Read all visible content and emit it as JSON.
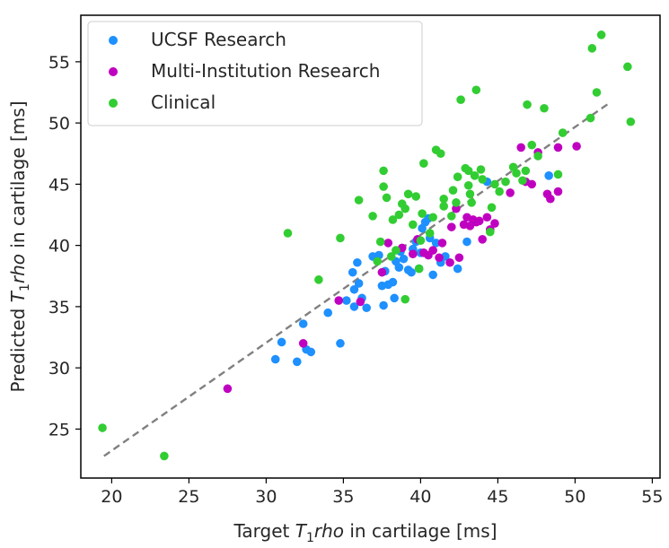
{
  "chart_data": {
    "type": "scatter",
    "title": "",
    "xlabel": {
      "prefix": "Target ",
      "var_T": "T",
      "var_sub": "1",
      "var_rho": "rho",
      "suffix": " in cartilage [ms]"
    },
    "ylabel": {
      "prefix": "Predicted ",
      "var_T": "T",
      "var_sub": "1",
      "var_rho": "rho",
      "suffix": " in cartilage [ms]"
    },
    "xlim": [
      18,
      55.5
    ],
    "ylim": [
      21,
      58.8
    ],
    "xticks": [
      20,
      25,
      30,
      35,
      40,
      45,
      50,
      55
    ],
    "yticks": [
      25,
      30,
      35,
      40,
      45,
      50,
      55
    ],
    "legend_position": "top-left",
    "identity_line": {
      "from": [
        19.5,
        22.8
      ],
      "to": [
        52.3,
        51.7
      ],
      "color": "#808080",
      "style": "dashed"
    },
    "series": [
      {
        "name": "UCSF Research",
        "color": "#1e90ff",
        "points": [
          [
            30.6,
            30.7
          ],
          [
            31.0,
            32.1
          ],
          [
            32.0,
            30.5
          ],
          [
            32.4,
            33.6
          ],
          [
            32.6,
            31.5
          ],
          [
            32.9,
            31.3
          ],
          [
            34.8,
            32.0
          ],
          [
            34.0,
            34.5
          ],
          [
            35.2,
            35.5
          ],
          [
            35.6,
            37.8
          ],
          [
            35.7,
            36.4
          ],
          [
            35.7,
            35.0
          ],
          [
            35.9,
            38.6
          ],
          [
            36.0,
            36.9
          ],
          [
            36.2,
            35.7
          ],
          [
            36.5,
            34.9
          ],
          [
            36.9,
            39.1
          ],
          [
            37.3,
            39.2
          ],
          [
            37.5,
            36.7
          ],
          [
            37.6,
            35.1
          ],
          [
            37.7,
            37.9
          ],
          [
            37.9,
            36.8
          ],
          [
            38.2,
            37.0
          ],
          [
            38.3,
            35.7
          ],
          [
            38.4,
            38.7
          ],
          [
            38.6,
            38.2
          ],
          [
            38.7,
            39.5
          ],
          [
            38.9,
            38.9
          ],
          [
            39.2,
            38.0
          ],
          [
            39.4,
            37.8
          ],
          [
            39.5,
            39.7
          ],
          [
            39.7,
            40.3
          ],
          [
            39.9,
            38.1
          ],
          [
            40.0,
            39.4
          ],
          [
            40.1,
            41.4
          ],
          [
            40.3,
            41.9
          ],
          [
            40.5,
            42.2
          ],
          [
            40.6,
            40.6
          ],
          [
            40.8,
            37.6
          ],
          [
            41.0,
            40.2
          ],
          [
            41.3,
            38.6
          ],
          [
            41.6,
            39.1
          ],
          [
            42.4,
            38.1
          ],
          [
            43.0,
            40.3
          ],
          [
            44.3,
            45.2
          ],
          [
            48.3,
            45.7
          ]
        ]
      },
      {
        "name": "Multi-Institution Research",
        "color": "#c000c0",
        "points": [
          [
            27.5,
            28.3
          ],
          [
            32.4,
            32.0
          ],
          [
            34.7,
            35.5
          ],
          [
            36.1,
            35.4
          ],
          [
            37.5,
            37.8
          ],
          [
            37.9,
            40.2
          ],
          [
            38.8,
            39.8
          ],
          [
            39.5,
            39.3
          ],
          [
            39.8,
            40.5
          ],
          [
            40.2,
            39.4
          ],
          [
            40.5,
            39.2
          ],
          [
            40.8,
            39.6
          ],
          [
            41.2,
            39.0
          ],
          [
            41.4,
            40.2
          ],
          [
            41.9,
            38.6
          ],
          [
            42.0,
            41.5
          ],
          [
            42.3,
            43.0
          ],
          [
            42.5,
            39.0
          ],
          [
            42.8,
            41.7
          ],
          [
            43.0,
            42.3
          ],
          [
            43.2,
            41.6
          ],
          [
            43.4,
            42.1
          ],
          [
            43.6,
            41.9
          ],
          [
            43.8,
            42.0
          ],
          [
            44.0,
            40.5
          ],
          [
            44.3,
            42.3
          ],
          [
            44.5,
            41.3
          ],
          [
            44.8,
            41.8
          ],
          [
            45.8,
            44.3
          ],
          [
            46.5,
            48.0
          ],
          [
            46.8,
            45.2
          ],
          [
            47.2,
            45.0
          ],
          [
            47.6,
            47.6
          ],
          [
            48.2,
            44.2
          ],
          [
            48.4,
            43.8
          ],
          [
            48.9,
            44.4
          ],
          [
            48.9,
            48.0
          ],
          [
            50.1,
            48.1
          ]
        ]
      },
      {
        "name": "Clinical",
        "color": "#32cd32",
        "points": [
          [
            19.4,
            25.1
          ],
          [
            23.4,
            22.8
          ],
          [
            31.4,
            41.0
          ],
          [
            33.4,
            37.2
          ],
          [
            34.8,
            40.6
          ],
          [
            36.0,
            43.7
          ],
          [
            36.9,
            42.4
          ],
          [
            37.2,
            38.7
          ],
          [
            37.4,
            40.3
          ],
          [
            37.6,
            46.1
          ],
          [
            37.6,
            44.8
          ],
          [
            37.8,
            43.9
          ],
          [
            38.1,
            39.1
          ],
          [
            38.2,
            42.1
          ],
          [
            38.4,
            39.6
          ],
          [
            38.6,
            42.5
          ],
          [
            38.8,
            43.4
          ],
          [
            39.0,
            43.0
          ],
          [
            39.0,
            35.6
          ],
          [
            39.2,
            44.2
          ],
          [
            39.5,
            41.7
          ],
          [
            39.7,
            44.0
          ],
          [
            39.9,
            38.1
          ],
          [
            40.0,
            40.4
          ],
          [
            40.1,
            42.6
          ],
          [
            40.2,
            46.7
          ],
          [
            40.6,
            41.0
          ],
          [
            40.8,
            42.3
          ],
          [
            41.0,
            47.8
          ],
          [
            41.3,
            47.5
          ],
          [
            41.5,
            43.8
          ],
          [
            41.5,
            43.2
          ],
          [
            42.0,
            42.4
          ],
          [
            42.1,
            44.5
          ],
          [
            42.3,
            43.5
          ],
          [
            42.4,
            45.6
          ],
          [
            42.6,
            51.9
          ],
          [
            42.9,
            46.3
          ],
          [
            43.1,
            46.1
          ],
          [
            43.1,
            44.9
          ],
          [
            43.2,
            44.2
          ],
          [
            43.3,
            43.5
          ],
          [
            43.5,
            45.7
          ],
          [
            43.6,
            52.7
          ],
          [
            43.9,
            46.2
          ],
          [
            44.0,
            45.4
          ],
          [
            44.5,
            41.1
          ],
          [
            44.6,
            43.1
          ],
          [
            44.8,
            45.0
          ],
          [
            45.1,
            44.4
          ],
          [
            45.5,
            45.2
          ],
          [
            46.0,
            46.4
          ],
          [
            46.2,
            45.9
          ],
          [
            46.6,
            45.3
          ],
          [
            46.8,
            46.1
          ],
          [
            46.9,
            51.5
          ],
          [
            47.2,
            48.2
          ],
          [
            47.6,
            47.3
          ],
          [
            48.0,
            51.2
          ],
          [
            48.9,
            45.8
          ],
          [
            49.2,
            49.2
          ],
          [
            51.0,
            50.4
          ],
          [
            51.1,
            56.1
          ],
          [
            51.4,
            52.5
          ],
          [
            51.7,
            57.2
          ],
          [
            53.4,
            54.6
          ],
          [
            53.6,
            50.1
          ]
        ]
      }
    ]
  }
}
